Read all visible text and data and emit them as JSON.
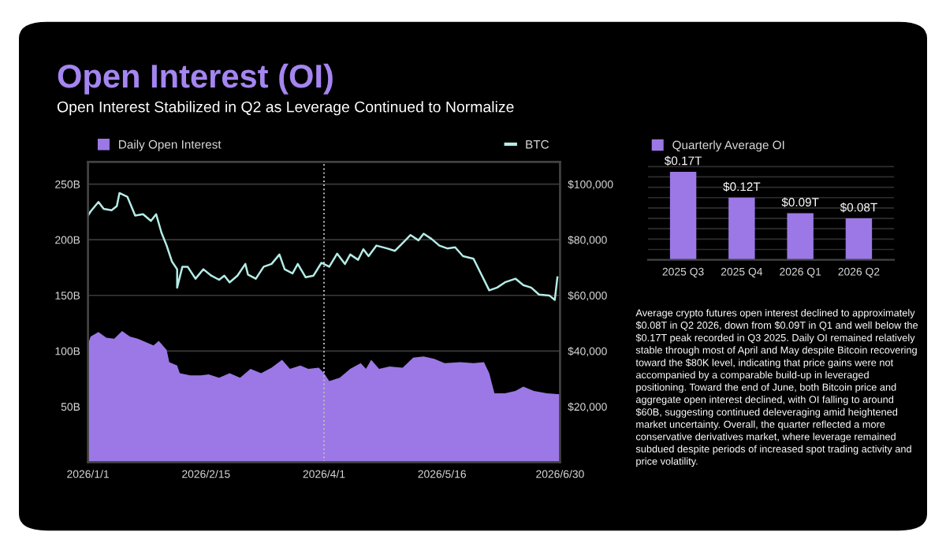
{
  "chart_data": [
    {
      "type": "area",
      "title": "Open Interest (OI)",
      "subtitle": "Open Interest Stabilized in Q2 as Leverage Continued to Normalize",
      "xlim": [
        "2026-01-01",
        "2026-06-30"
      ],
      "xticks": [
        {
          "value": "2026-01-01",
          "label": "2026/1/1"
        },
        {
          "value": "2026-02-15",
          "label": "2026/2/15"
        },
        {
          "value": "2026-04-01",
          "label": "2026/4/1"
        },
        {
          "value": "2026-05-16",
          "label": "2026/5/16"
        },
        {
          "value": "2026-06-30",
          "label": "2026/6/30"
        }
      ],
      "ylim": [
        0,
        270
      ],
      "yticks": [
        {
          "value": 50,
          "label": "50B"
        },
        {
          "value": 100,
          "label": "100B"
        },
        {
          "value": 150,
          "label": "150B"
        },
        {
          "value": 200,
          "label": "200B"
        },
        {
          "value": 250,
          "label": "250B"
        }
      ],
      "y2lim": [
        0,
        108000
      ],
      "y2ticks": [
        {
          "value": 20000,
          "label": "$20,000"
        },
        {
          "value": 40000,
          "label": "$40,000"
        },
        {
          "value": 60000,
          "label": "$60,000"
        },
        {
          "value": 80000,
          "label": "$80,000"
        },
        {
          "value": 100000,
          "label": "$100,000"
        }
      ],
      "grid": "y",
      "legend": "top",
      "ref_lines": [
        {
          "axis": "x",
          "value": "2026-04-01",
          "label": null,
          "color": "#bbbbbb",
          "line_style": "dotted"
        }
      ],
      "series": [
        {
          "name": "Daily Open Interest",
          "type": "area",
          "color": "#9b78e6",
          "x": [
            "2026-01-01",
            "2026-01-02",
            "2026-01-05",
            "2026-01-08",
            "2026-01-11",
            "2026-01-14",
            "2026-01-17",
            "2026-01-20",
            "2026-01-23",
            "2026-01-26",
            "2026-01-28",
            "2026-01-31",
            "2026-02-01",
            "2026-02-04",
            "2026-02-05",
            "2026-02-09",
            "2026-02-13",
            "2026-02-16",
            "2026-02-20",
            "2026-02-24",
            "2026-02-28",
            "2026-03-04",
            "2026-03-08",
            "2026-03-12",
            "2026-03-16",
            "2026-03-19",
            "2026-03-23",
            "2026-03-26",
            "2026-03-30",
            "2026-04-01",
            "2026-04-03",
            "2026-04-07",
            "2026-04-11",
            "2026-04-15",
            "2026-04-17",
            "2026-04-19",
            "2026-04-22",
            "2026-04-26",
            "2026-05-01",
            "2026-05-05",
            "2026-05-09",
            "2026-05-13",
            "2026-05-17",
            "2026-05-23",
            "2026-05-28",
            "2026-06-01",
            "2026-06-03",
            "2026-06-05",
            "2026-06-09",
            "2026-06-13",
            "2026-06-16",
            "2026-06-20",
            "2026-06-25",
            "2026-06-30"
          ],
          "values": [
            106,
            113,
            117,
            112,
            111,
            118,
            113,
            111,
            108,
            105,
            109,
            101,
            90,
            87,
            80,
            78,
            78,
            79,
            76,
            80,
            76,
            84,
            80,
            85,
            92,
            84,
            87,
            84,
            85,
            80,
            73,
            76,
            84,
            89,
            84,
            92,
            84,
            86,
            85,
            94,
            95,
            93,
            89,
            90,
            89,
            90,
            80,
            62,
            62,
            64,
            68,
            64,
            62,
            61
          ]
        },
        {
          "name": "BTC",
          "type": "line",
          "axis": "y2",
          "color": "#b4ece6",
          "x": [
            "2026-01-01",
            "2026-01-02",
            "2026-01-05",
            "2026-01-07",
            "2026-01-10",
            "2026-01-12",
            "2026-01-13",
            "2026-01-16",
            "2026-01-19",
            "2026-01-22",
            "2026-01-25",
            "2026-01-27",
            "2026-01-29",
            "2026-01-31",
            "2026-02-02",
            "2026-02-04",
            "2026-02-04",
            "2026-02-06",
            "2026-02-08",
            "2026-02-11",
            "2026-02-14",
            "2026-02-17",
            "2026-02-20",
            "2026-02-22",
            "2026-02-24",
            "2026-02-27",
            "2026-03-02",
            "2026-03-03",
            "2026-03-06",
            "2026-03-09",
            "2026-03-12",
            "2026-03-15",
            "2026-03-17",
            "2026-03-20",
            "2026-03-22",
            "2026-03-25",
            "2026-03-28",
            "2026-03-31",
            "2026-04-03",
            "2026-04-06",
            "2026-04-09",
            "2026-04-11",
            "2026-04-14",
            "2026-04-16",
            "2026-04-18",
            "2026-04-21",
            "2026-04-25",
            "2026-04-28",
            "2026-05-01",
            "2026-05-04",
            "2026-05-07",
            "2026-05-09",
            "2026-05-12",
            "2026-05-15",
            "2026-05-18",
            "2026-05-21",
            "2026-05-24",
            "2026-05-28",
            "2026-05-31",
            "2026-06-03",
            "2026-06-06",
            "2026-06-09",
            "2026-06-13",
            "2026-06-16",
            "2026-06-19",
            "2026-06-22",
            "2026-06-26",
            "2026-06-28",
            "2026-06-29"
          ],
          "values": [
            88700,
            90200,
            93600,
            91100,
            90600,
            92100,
            96800,
            95500,
            88700,
            89200,
            86800,
            89200,
            82600,
            77900,
            72200,
            69400,
            62800,
            70300,
            70300,
            66000,
            69400,
            67100,
            65600,
            67100,
            64700,
            67100,
            71300,
            67500,
            66000,
            70300,
            71300,
            74700,
            69400,
            67900,
            71300,
            66500,
            67100,
            71700,
            70300,
            75000,
            71300,
            74700,
            72800,
            76600,
            74100,
            77900,
            76900,
            76000,
            78800,
            81700,
            79800,
            82200,
            80300,
            77900,
            76900,
            77300,
            74100,
            73200,
            67500,
            61800,
            62800,
            64700,
            66000,
            63700,
            62800,
            60300,
            59900,
            58400,
            66500
          ]
        }
      ]
    },
    {
      "type": "bar",
      "categories": [
        "2025 Q3",
        "2025 Q4",
        "2026 Q1",
        "2026 Q2"
      ],
      "series": [
        {
          "name": "Quarterly Average OI",
          "color": "#9b78e6",
          "values": [
            0.17,
            0.12,
            0.09,
            0.08
          ],
          "value_labels": [
            "$0.17T",
            "$0.12T",
            "$0.09T",
            "$0.08T"
          ]
        }
      ],
      "ylim": [
        0,
        0.19
      ],
      "yticks": [
        {
          "value": 0.02,
          "label": null
        },
        {
          "value": 0.04,
          "label": null
        },
        {
          "value": 0.06,
          "label": null
        },
        {
          "value": 0.08,
          "label": null
        },
        {
          "value": 0.1,
          "label": null
        },
        {
          "value": 0.12,
          "label": null
        },
        {
          "value": 0.14,
          "label": null
        },
        {
          "value": 0.16,
          "label": null
        },
        {
          "value": 0.18,
          "label": null
        }
      ],
      "tick_labels": "x",
      "grid": "y",
      "legend": "top left"
    },
    {
      "type": "other",
      "annotations": [
        "Average crypto futures open interest declined to approximately\n$0.08T in Q2 2026, down from $0.09T in Q1 and well below the\n$0.17T peak recorded in Q3 2025. Daily OI remained relatively\nstable through most of April and May despite Bitcoin recovering\ntoward the $80K level, indicating that price gains were not\naccompanied by a comparable build-up in leveraged\npositioning. Toward the end of June, both Bitcoin price and\naggregate open interest declined, with OI falling to around\n$60B, suggesting continued deleveraging amid heightened\nmarket uncertainty. Overall, the quarter reflected a more\nconservative derivatives market, where leverage remained\nsubdued despite periods of increased spot trading activity and\nprice volatility."
      ]
    }
  ]
}
